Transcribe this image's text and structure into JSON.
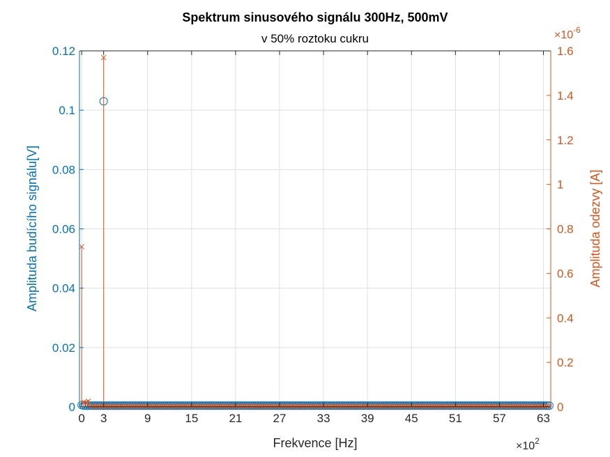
{
  "chart_data": {
    "type": "scatter",
    "title": "Spektrum sinusového signálu 300Hz, 500mV",
    "subtitle": "v 50% roztoku cukru",
    "xlabel": "Frekvence [Hz]",
    "x_exponent_label": "×10",
    "x_exponent_power": "2",
    "xlim": [
      -0.3,
      64
    ],
    "xticks": [
      0,
      3,
      9,
      15,
      21,
      27,
      33,
      39,
      45,
      51,
      57,
      63
    ],
    "grid": true,
    "y_left": {
      "label": "Amplituda budícího signálu[V]",
      "ylim": [
        0,
        0.12
      ],
      "ticks": [
        "0",
        "0.02",
        "0.04",
        "0.06",
        "0.08",
        "0.1",
        "0.12"
      ],
      "tick_values": [
        0,
        0.02,
        0.04,
        0.06,
        0.08,
        0.1,
        0.12
      ],
      "color": "#0072BD"
    },
    "y_right": {
      "label": "Amplituda odezvy [A]",
      "ylim": [
        0,
        1.6
      ],
      "exponent_label": "×10",
      "exponent_power": "-6",
      "ticks": [
        "0",
        "0.2",
        "0.4",
        "0.6",
        "0.8",
        "1",
        "1.2",
        "1.4",
        "1.6"
      ],
      "tick_values": [
        0,
        0.2,
        0.4,
        0.6,
        0.8,
        1.0,
        1.2,
        1.4,
        1.6
      ],
      "color": "#D95319"
    },
    "series": [
      {
        "axis": "left",
        "marker": "circle",
        "color": "#0072BD",
        "points": [
          {
            "x": 0,
            "y": 0.0006
          },
          {
            "x": 3,
            "y": 0.103
          }
        ],
        "baseline": {
          "from": 0.3,
          "to": 63.9,
          "step": 0.25,
          "y": 0.0004
        }
      },
      {
        "axis": "right",
        "marker": "x",
        "color": "#D95319",
        "stem": true,
        "points": [
          {
            "x": 0,
            "y": 0.72
          },
          {
            "x": 0.3,
            "y": 0.02
          },
          {
            "x": 0.6,
            "y": 0.02
          },
          {
            "x": 0.9,
            "y": 0.025
          },
          {
            "x": 3,
            "y": 1.57
          }
        ],
        "baseline": {
          "from": 1.2,
          "to": 63.9,
          "step": 0.25,
          "y": 0.003
        }
      }
    ]
  }
}
